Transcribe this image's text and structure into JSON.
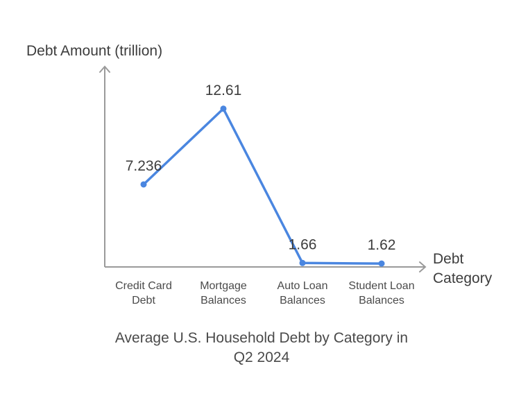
{
  "chart_data": {
    "type": "line",
    "title_lines": [
      "Average U.S. Household Debt by Category in",
      "Q2 2024"
    ],
    "ylabel": "Debt Amount (trillion)",
    "xlabel_lines": [
      "Debt",
      "Category"
    ],
    "categories": [
      [
        "Credit Card",
        "Debt"
      ],
      [
        "Mortgage",
        "Balances"
      ],
      [
        "Auto Loan",
        "Balances"
      ],
      [
        "Student Loan",
        "Balances"
      ]
    ],
    "values": [
      7.236,
      12.61,
      1.66,
      1.62
    ],
    "value_labels": [
      "7.236",
      "12.61",
      "1.66",
      "1.62"
    ],
    "ylim": [
      -4.82,
      15.6
    ],
    "grid": false,
    "line_color": "#4a86e0",
    "axis_color": "#9a9a9a"
  }
}
